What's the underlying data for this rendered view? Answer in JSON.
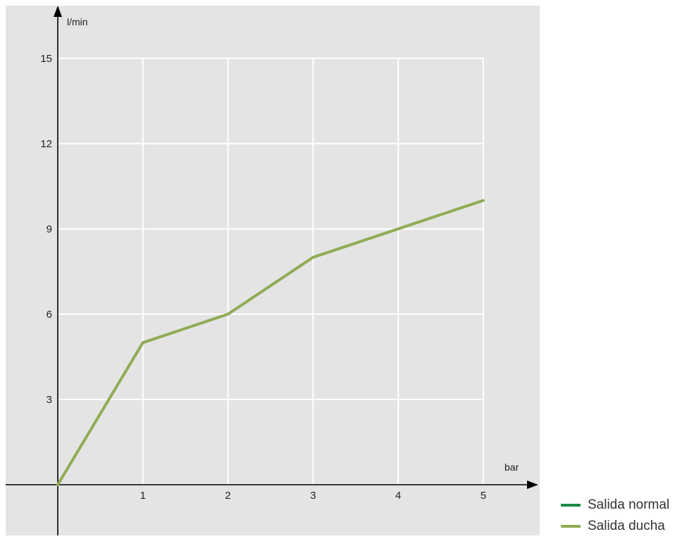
{
  "chart_data": {
    "type": "line",
    "xlabel": "bar",
    "ylabel": "l/min",
    "xlim": [
      0,
      5
    ],
    "ylim": [
      0,
      15
    ],
    "xticks": [
      "1",
      "2",
      "3",
      "4",
      "5"
    ],
    "yticks": [
      "3",
      "6",
      "9",
      "12",
      "15"
    ],
    "grid": true,
    "legend_position": "bottom-right",
    "series": [
      {
        "name": "Salida normal",
        "color": "#1a8a45",
        "x": [],
        "y": []
      },
      {
        "name": "Salida ducha",
        "color": "#8fac55",
        "x": [
          0,
          1,
          2,
          3,
          4,
          5
        ],
        "y": [
          0,
          5,
          6,
          8,
          9,
          10
        ]
      }
    ]
  },
  "colors": {
    "plot_background": "#e4e4e4",
    "grid": "#ffffff",
    "axis": "#000000"
  }
}
